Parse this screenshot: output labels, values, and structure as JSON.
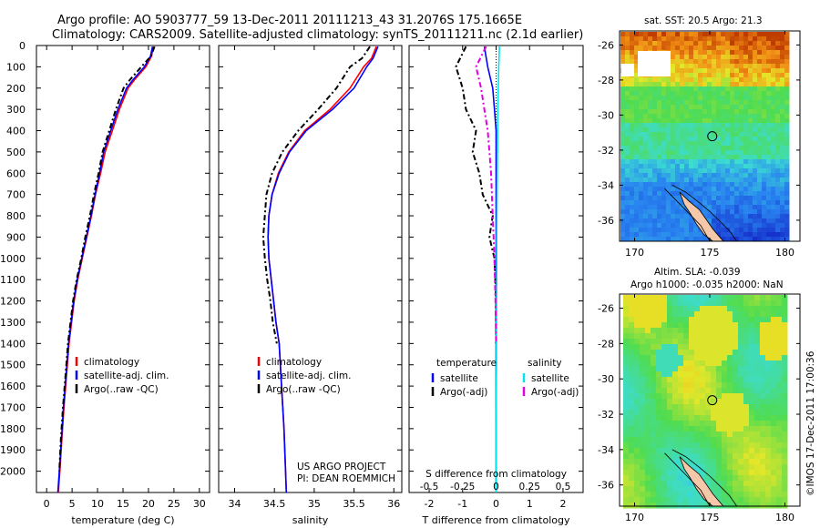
{
  "header": {
    "line1": "Argo profile: AO 5903777_59 13-Dec-2011 20111213_43 31.2076S 175.1665E",
    "line2": "Climatology: CARS2009. Satellite-adjusted climatology: synTS_20111211.nc (2.1d earlier)"
  },
  "colors": {
    "climatology": "#ff0000",
    "satellite": "#0000ff",
    "argo": "#000000",
    "satellite_salinity": "#00e5ee",
    "argo_adj_salinity": "#e000e0"
  },
  "chart_data": [
    {
      "type": "line",
      "panel": "temperature",
      "xlabel": "temperature (deg C)",
      "ylabel": "",
      "xlim": [
        -2,
        32
      ],
      "ylim": [
        2100,
        0
      ],
      "xticks": [
        0,
        5,
        10,
        15,
        20,
        25,
        30
      ],
      "yticks": [
        0,
        100,
        200,
        300,
        400,
        500,
        600,
        700,
        800,
        900,
        1000,
        1100,
        1200,
        1300,
        1400,
        1500,
        1600,
        1700,
        1800,
        1900,
        2000
      ],
      "legend": [
        "climatology",
        "satellite-adj. clim.",
        "Argo(..raw -QC)"
      ],
      "series": [
        {
          "name": "climatology",
          "color": "#ff0000",
          "style": "solid",
          "x": [
            21.0,
            20.6,
            19.5,
            17.3,
            16.0,
            14.3,
            12.9,
            11.5,
            10.6,
            9.6,
            8.8,
            7.9,
            7.0,
            6.1,
            5.4,
            4.4,
            3.9,
            3.4,
            3.0,
            2.6,
            2.3
          ],
          "y": [
            5,
            50,
            100,
            160,
            200,
            300,
            400,
            500,
            600,
            700,
            800,
            900,
            1000,
            1100,
            1200,
            1400,
            1550,
            1700,
            1850,
            2000,
            2100
          ]
        },
        {
          "name": "satellite-adj. clim.",
          "color": "#0000ff",
          "style": "solid",
          "x": [
            20.8,
            20.4,
            19.2,
            17.0,
            15.7,
            14.0,
            12.6,
            11.2,
            10.4,
            9.5,
            8.7,
            7.8,
            6.9,
            6.0,
            5.3,
            4.3,
            3.8,
            3.3,
            2.9,
            2.5,
            2.2
          ],
          "y": [
            5,
            50,
            100,
            160,
            200,
            300,
            400,
            500,
            600,
            700,
            800,
            900,
            1000,
            1100,
            1200,
            1400,
            1550,
            1700,
            1850,
            2000,
            2100
          ]
        },
        {
          "name": "Argo(..raw -QC)",
          "color": "#000000",
          "style": "dashed",
          "x": [
            21.2,
            20.5,
            18.6,
            16.4,
            15.1,
            13.6,
            12.3,
            11.0,
            10.2,
            9.3,
            8.5,
            7.6,
            6.8,
            5.9,
            5.2,
            4.2,
            3.7,
            3.2,
            2.8,
            2.5
          ],
          "y": [
            5,
            50,
            100,
            160,
            200,
            300,
            400,
            500,
            600,
            700,
            800,
            900,
            1000,
            1100,
            1200,
            1400,
            1550,
            1700,
            1850,
            2000
          ]
        }
      ]
    },
    {
      "type": "line",
      "panel": "salinity",
      "xlabel": "salinity",
      "xlim": [
        33.8,
        36.1
      ],
      "ylim": [
        2100,
        0
      ],
      "xticks": [
        34,
        34.5,
        35,
        35.5,
        36
      ],
      "legend": [
        "climatology",
        "satellite-adj. clim.",
        "Argo(..raw -QC)"
      ],
      "series": [
        {
          "name": "climatology",
          "color": "#ff0000",
          "style": "solid",
          "x": [
            35.78,
            35.72,
            35.62,
            35.45,
            35.2,
            34.88,
            34.68,
            34.55,
            34.47,
            34.43,
            34.42,
            34.43,
            34.46,
            34.49,
            34.52,
            34.56,
            34.59,
            34.62,
            34.65
          ],
          "y": [
            5,
            60,
            100,
            200,
            300,
            400,
            500,
            600,
            700,
            800,
            900,
            1000,
            1100,
            1200,
            1300,
            1400,
            1600,
            1800,
            2100
          ]
        },
        {
          "name": "satellite-adj. clim.",
          "color": "#0000ff",
          "style": "solid",
          "x": [
            35.8,
            35.74,
            35.66,
            35.5,
            35.23,
            34.9,
            34.69,
            34.56,
            34.47,
            34.43,
            34.42,
            34.43,
            34.46,
            34.49,
            34.52,
            34.56,
            34.59,
            34.62,
            34.65
          ],
          "y": [
            5,
            60,
            100,
            200,
            300,
            400,
            500,
            600,
            700,
            800,
            900,
            1000,
            1100,
            1200,
            1300,
            1400,
            1600,
            1800,
            2100
          ]
        },
        {
          "name": "Argo(..raw -QC)",
          "color": "#000000",
          "style": "dashed",
          "x": [
            35.7,
            35.6,
            35.45,
            35.28,
            35.05,
            34.8,
            34.6,
            34.47,
            34.4,
            34.38,
            34.36,
            34.38,
            34.41,
            34.45,
            34.48,
            34.53
          ],
          "y": [
            5,
            60,
            100,
            200,
            300,
            400,
            500,
            600,
            700,
            800,
            900,
            1000,
            1100,
            1200,
            1300,
            1400
          ]
        }
      ]
    },
    {
      "type": "line",
      "panel": "difference",
      "xlabel": "T difference from climatology",
      "xlabel_top": "S difference from climatology",
      "xlim": [
        -2.6,
        2.6
      ],
      "ylim": [
        2100,
        0
      ],
      "xticks": [
        -2,
        -1,
        0,
        1,
        2
      ],
      "xticks_top": [
        "-0.5",
        "-0.25",
        "0",
        "0.25",
        "0.5"
      ],
      "legend_headers": [
        "temperature",
        "salinity"
      ],
      "legend": [
        "satellite",
        "Argo(-adj)",
        "satellite",
        "Argo(-adj)"
      ],
      "series": [
        {
          "name": "satellite",
          "color": "#0000ff",
          "style": "solid",
          "x": [
            -0.35,
            -0.25,
            -0.1,
            -0.05,
            0.0,
            0.0,
            0.0,
            0.0,
            0.0,
            0.0,
            0.0,
            0.0
          ],
          "y": [
            5,
            100,
            200,
            300,
            400,
            500,
            700,
            900,
            1100,
            1300,
            1700,
            2100
          ]
        },
        {
          "name": "Argo(-adj)",
          "color": "#000000",
          "style": "dashed",
          "x": [
            -0.9,
            -1.2,
            -1.0,
            -0.9,
            -0.6,
            -0.7,
            -0.5,
            -0.4,
            -0.1,
            -0.2,
            -0.05,
            0.0,
            0.0
          ],
          "y": [
            5,
            100,
            200,
            300,
            400,
            500,
            600,
            700,
            800,
            900,
            1000,
            1200,
            1400
          ]
        },
        {
          "name": "satellite",
          "color": "#00e5ee",
          "style": "solid",
          "x": [
            0.1,
            0.08,
            0.05,
            0.04,
            0.03,
            0.02,
            0.02,
            0.01,
            0.01,
            0.0,
            0.0
          ],
          "y": [
            5,
            100,
            300,
            500,
            700,
            900,
            1100,
            1300,
            1500,
            1800,
            2100
          ]
        },
        {
          "name": "Argo(-adj)",
          "color": "#e000e0",
          "style": "dashed",
          "x": [
            -0.3,
            -0.6,
            -0.45,
            -0.35,
            -0.25,
            -0.2,
            -0.15,
            -0.1,
            -0.05,
            -0.02,
            0.0
          ],
          "y": [
            5,
            100,
            200,
            300,
            400,
            500,
            600,
            800,
            1000,
            1200,
            1400
          ]
        }
      ]
    }
  ],
  "credits": {
    "line1": "US ARGO PROJECT",
    "line2": "PI: DEAN ROEMMICH"
  },
  "maps": {
    "sst": {
      "title": "sat. SST: 20.5 Argo: 21.3"
    },
    "sla": {
      "title1": "Altim. SLA: -0.039",
      "title2": "Argo h1000: -0.035 h2000: NaN"
    },
    "lat_ticks": [
      "-26",
      "-28",
      "-30",
      "-32",
      "-34",
      "-36"
    ],
    "lon_ticks": [
      "170",
      "175",
      "180"
    ]
  },
  "footer": "©IMOS 17-Dec-2011 17:00:36"
}
